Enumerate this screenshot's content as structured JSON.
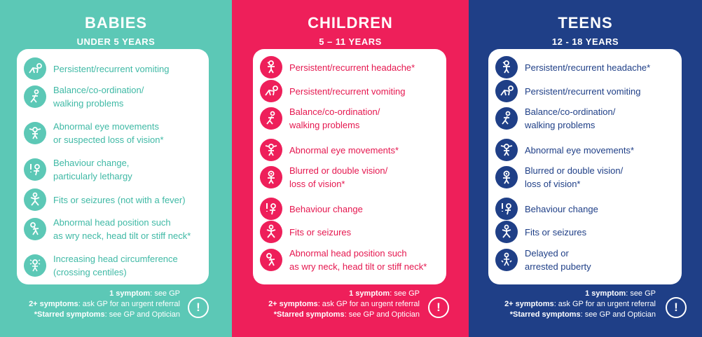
{
  "babies": {
    "title": "BABIES",
    "subtitle": "UNDER 5 YEARS",
    "items": [
      {
        "icon": "crawling-baby-icon",
        "l1": "Persistent/recurrent vomiting",
        "l2": ""
      },
      {
        "icon": "walking-figure-icon",
        "l1": "Balance/co-ordination/",
        "l2": "walking problems"
      },
      {
        "icon": "eye-figure-icon",
        "l1": "Abnormal eye movements",
        "l2": "or suspected loss of vision*"
      },
      {
        "icon": "exclamation-figure-icon",
        "l1": "Behaviour change,",
        "l2": "particularly lethargy"
      },
      {
        "icon": "seizure-figure-icon",
        "l1": "Fits or seizures (not with a fever)",
        "l2": ""
      },
      {
        "icon": "tilted-head-icon",
        "l1": "Abnormal head position such",
        "l2": "as wry neck, head tilt or stiff neck*"
      },
      {
        "icon": "head-circumference-icon",
        "l1": "Increasing head circumference",
        "l2": "(crossing centiles)"
      }
    ],
    "footer": {
      "s1_bold": "1 symptom",
      "s1_rest": ": see GP",
      "s2_bold": "2+ symptoms",
      "s2_rest": ": ask GP for an urgent referral",
      "s3_bold": "*Starred symptoms",
      "s3_rest": ": see GP and Optician"
    },
    "alert": "!"
  },
  "children": {
    "title": "CHILDREN",
    "subtitle": "5 – 11 YEARS",
    "items": [
      {
        "icon": "headache-figure-icon",
        "l1": "Persistent/recurrent headache*",
        "l2": ""
      },
      {
        "icon": "crawling-figure-icon",
        "l1": "Persistent/recurrent vomiting",
        "l2": ""
      },
      {
        "icon": "walking-figure-icon",
        "l1": "Balance/co-ordination/",
        "l2": "walking problems"
      },
      {
        "icon": "eye-figure-icon",
        "l1": "Abnormal eye movements*",
        "l2": ""
      },
      {
        "icon": "blurred-vision-icon",
        "l1": "Blurred or double vision/",
        "l2": "loss of vision*"
      },
      {
        "icon": "exclamation-figure-icon",
        "l1": "Behaviour change",
        "l2": ""
      },
      {
        "icon": "seizure-figure-icon",
        "l1": "Fits or seizures",
        "l2": ""
      },
      {
        "icon": "tilted-head-icon",
        "l1": "Abnormal head position such",
        "l2": "as wry neck, head tilt or stiff neck*"
      }
    ],
    "footer": {
      "s1_bold": "1 symptom",
      "s1_rest": ": see GP",
      "s2_bold": "2+ symptoms",
      "s2_rest": ": ask GP for an urgent referral",
      "s3_bold": "*Starred symptoms",
      "s3_rest": ": see GP and Optician"
    },
    "alert": "!"
  },
  "teens": {
    "title": "TEENS",
    "subtitle": "12 - 18 YEARS",
    "items": [
      {
        "icon": "headache-figure-icon",
        "l1": "Persistent/recurrent headache*",
        "l2": ""
      },
      {
        "icon": "crawling-figure-icon",
        "l1": "Persistent/recurrent vomiting",
        "l2": ""
      },
      {
        "icon": "walking-figure-icon",
        "l1": "Balance/co-ordination/",
        "l2": "walking problems"
      },
      {
        "icon": "eye-figure-icon",
        "l1": "Abnormal eye movements*",
        "l2": ""
      },
      {
        "icon": "blurred-vision-icon",
        "l1": "Blurred or double vision/",
        "l2": "loss of vision*"
      },
      {
        "icon": "exclamation-figure-icon",
        "l1": "Behaviour change",
        "l2": ""
      },
      {
        "icon": "seizure-figure-icon",
        "l1": "Fits or seizures",
        "l2": ""
      },
      {
        "icon": "puberty-figure-icon",
        "l1": "Delayed or",
        "l2": "arrested puberty"
      }
    ],
    "footer": {
      "s1_bold": "1 symptom",
      "s1_rest": ": see GP",
      "s2_bold": "2+ symptoms",
      "s2_rest": ": ask GP for an urgent referral",
      "s3_bold": "*Starred symptoms",
      "s3_rest": ": see GP and Optician"
    },
    "alert": "!"
  }
}
